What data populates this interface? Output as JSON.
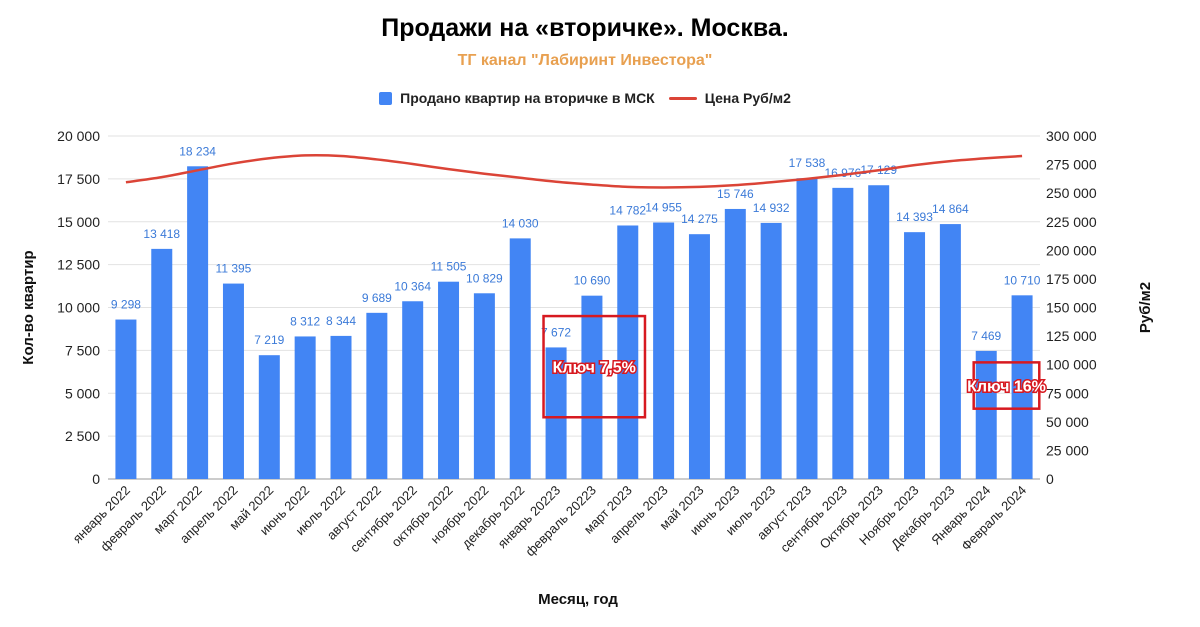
{
  "chart_data": {
    "type": "bar",
    "title": "Продажи на «вторичке». Москва.",
    "subtitle": "ТГ канал \"Лабиринт Инвестора\"",
    "xlabel": "Месяц, год",
    "ylabel": "Кол-во квартир",
    "y2label": "Руб/м2",
    "ylim": [
      0,
      20000
    ],
    "y2lim": [
      0,
      300000
    ],
    "yticks": [
      "0",
      "2 500",
      "5 000",
      "7 500",
      "10 000",
      "12 500",
      "15 000",
      "17 500",
      "20 000"
    ],
    "y2ticks": [
      "0",
      "25 000",
      "50 000",
      "75 000",
      "100 000",
      "125 000",
      "150 000",
      "175 000",
      "200 000",
      "225 000",
      "250 000",
      "275 000",
      "300 000"
    ],
    "categories": [
      "январь 2022",
      "февраль 2022",
      "март 2022",
      "апрель 2022",
      "май 2022",
      "июнь 2022",
      "июль 2022",
      "август 2022",
      "сентябрь 2022",
      "октябрь 2022",
      "ноябрь 2022",
      "декабрь 2022",
      "январь 20223",
      "февраль 20223",
      "март 2023",
      "апрель 2023",
      "май 2023",
      "июнь 2023",
      "июль 2023",
      "август 2023",
      "сентябрь 2023",
      "Октябрь 2023",
      "Ноябрь 2023",
      "Декабрь 2023",
      "Январь 2024",
      "Февраль 2024"
    ],
    "series": [
      {
        "name": "Продано квартир на вторичке в МСК",
        "axis": "left",
        "kind": "bar",
        "color": "#4285f4",
        "values": [
          9298,
          13418,
          18234,
          11395,
          7219,
          8312,
          8344,
          9689,
          10364,
          11505,
          10829,
          14030,
          7672,
          10690,
          14782,
          14955,
          14275,
          15746,
          14932,
          17538,
          16976,
          17129,
          14393,
          14864,
          7469,
          10710
        ],
        "labels": [
          "9 298",
          "13 418",
          "18 234",
          "11 395",
          "7 219",
          "8 312",
          "8 344",
          "9 689",
          "10 364",
          "11 505",
          "10 829",
          "14 030",
          "7 672",
          "10 690",
          "14 782",
          "14 955",
          "14 275",
          "15 746",
          "14 932",
          "17 538",
          "16 976",
          "17 129",
          "14 393",
          "14 864",
          "7 469",
          "10 710"
        ]
      },
      {
        "name": "Цена Руб/м2",
        "axis": "right",
        "kind": "line",
        "color": "#db4437",
        "values": [
          259500,
          264000,
          270000,
          276000,
          280500,
          283000,
          282500,
          279500,
          275500,
          271000,
          267000,
          263500,
          260000,
          257500,
          255500,
          255000,
          255500,
          257000,
          259500,
          262500,
          266000,
          270000,
          274500,
          278000,
          280500,
          282500
        ]
      }
    ],
    "annotations": [
      {
        "text": "Ключ 7,5%",
        "category_from": 12,
        "category_to": 14,
        "y_from": 3600,
        "y_to": 9500,
        "color": "#d71920"
      },
      {
        "text": "Ключ 16%",
        "category_from": 24,
        "category_to": 25,
        "y_from": 4100,
        "y_to": 6800,
        "color": "#d71920"
      }
    ],
    "grid": "horizontal",
    "legend": "top-center"
  }
}
